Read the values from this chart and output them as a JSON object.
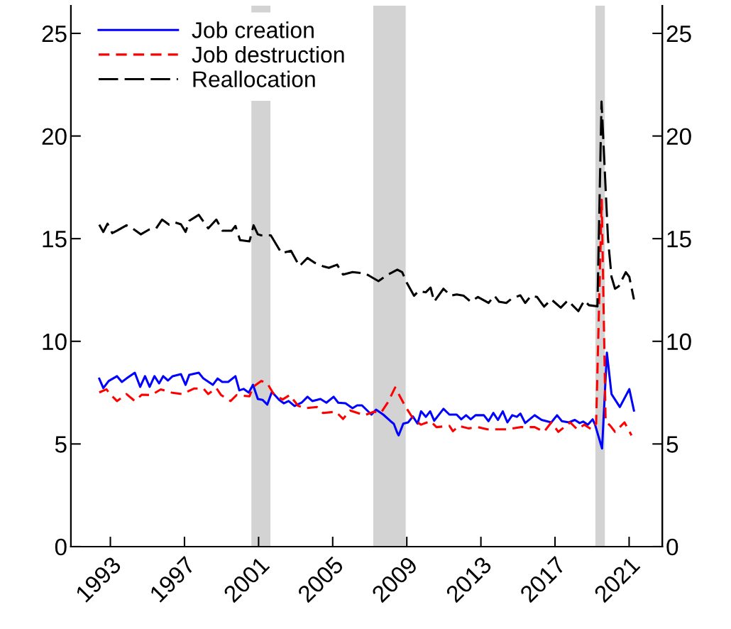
{
  "chart_data": {
    "type": "line",
    "series": [
      {
        "name": "Job creation",
        "color": "#0000ff",
        "line_style": "solid",
        "x": [
          1992.4,
          1992.62,
          1992.91,
          1993.36,
          1993.62,
          1993.87,
          1994.32,
          1994.61,
          1994.87,
          1995.12,
          1995.38,
          1995.63,
          1995.85,
          1996.11,
          1996.36,
          1996.81,
          1997.06,
          1997.26,
          1997.77,
          1998.02,
          1998.53,
          1998.79,
          1999.04,
          1999.36,
          1999.75,
          1999.96,
          2000.19,
          2000.47,
          2000.7,
          2000.96,
          2001.21,
          2001.47,
          2001.72,
          2002.11,
          2002.36,
          2002.62,
          2002.94,
          2003.32,
          2003.64,
          2003.9,
          2004.34,
          2004.66,
          2005.05,
          2005.3,
          2005.69,
          2006.07,
          2006.32,
          2006.58,
          2007.09,
          2007.34,
          2007.73,
          2008.11,
          2008.3,
          2008.49,
          2008.56,
          2008.81,
          2009.07,
          2009.33,
          2009.58,
          2009.77,
          2010.03,
          2010.26,
          2010.48,
          2010.98,
          2011.3,
          2011.69,
          2011.94,
          2012.2,
          2012.45,
          2012.71,
          2013.16,
          2013.41,
          2013.67,
          2013.92,
          2014.18,
          2014.43,
          2014.69,
          2014.94,
          2015.13,
          2015.39,
          2015.9,
          2016.28,
          2016.54,
          2016.8,
          2017.11,
          2017.37,
          2017.75,
          2018.07,
          2018.33,
          2018.52,
          2018.77,
          2019.03,
          2019.16,
          2019.54,
          2019.8,
          2020.05,
          2020.5,
          2021.01,
          2021.26
        ],
        "values": [
          8.18,
          7.72,
          8.07,
          8.3,
          8.02,
          8.19,
          8.47,
          7.78,
          8.3,
          7.78,
          8.3,
          7.95,
          8.3,
          8.09,
          8.3,
          8.4,
          7.88,
          8.37,
          8.47,
          8.19,
          7.88,
          8.19,
          8.02,
          8.02,
          8.3,
          7.61,
          7.68,
          7.5,
          7.88,
          7.19,
          7.15,
          6.92,
          7.54,
          7.15,
          6.98,
          7.09,
          6.85,
          7.01,
          7.3,
          7.09,
          7.19,
          7.01,
          7.3,
          7.01,
          6.98,
          6.74,
          6.88,
          6.88,
          6.43,
          6.67,
          6.43,
          6.12,
          5.98,
          5.53,
          5.42,
          5.99,
          6.05,
          6.34,
          5.99,
          6.59,
          6.32,
          6.59,
          6.13,
          6.71,
          6.43,
          6.43,
          6.2,
          6.4,
          6.2,
          6.4,
          6.4,
          6.11,
          6.51,
          6.17,
          6.59,
          6.05,
          6.4,
          6.32,
          6.48,
          6.02,
          6.4,
          6.17,
          6.11,
          6.05,
          6.4,
          6.11,
          6.05,
          6.17,
          6.02,
          6.09,
          5.94,
          6.2,
          5.94,
          4.78,
          9.45,
          7.43,
          6.8,
          7.67,
          6.63
        ]
      },
      {
        "name": "Job destruction",
        "color": "#ff0000",
        "line_style": "dashed",
        "x": [
          1992.4,
          1992.79,
          1992.98,
          1993.36,
          1993.87,
          1994.32,
          1994.7,
          1995.21,
          1995.72,
          1996.36,
          1996.87,
          1997.51,
          1998.02,
          1998.28,
          1998.72,
          1998.98,
          1999.49,
          1999.81,
          2000.51,
          2000.7,
          2001.15,
          2001.47,
          2001.85,
          2002.3,
          2002.68,
          2003.13,
          2003.51,
          2004.15,
          2004.47,
          2005.17,
          2005.56,
          2005.94,
          2006.71,
          2007.22,
          2007.6,
          2007.98,
          2008.37,
          2008.94,
          2009.39,
          2009.77,
          2010.28,
          2010.6,
          2011.3,
          2011.49,
          2011.82,
          2012.33,
          2012.84,
          2013.35,
          2014.37,
          2015.13,
          2015.9,
          2016.41,
          2016.8,
          2017.18,
          2017.82,
          2018.2,
          2018.58,
          2018.97,
          2019.22,
          2019.52,
          2019.73,
          2019.99,
          2020.24,
          2020.75,
          2021.13
        ],
        "values": [
          7.51,
          7.66,
          7.43,
          7.09,
          7.43,
          7.09,
          7.4,
          7.38,
          7.66,
          7.49,
          7.43,
          7.7,
          7.7,
          7.43,
          7.72,
          7.38,
          7.09,
          7.38,
          7.32,
          7.78,
          8.07,
          7.95,
          7.38,
          7.17,
          7.38,
          6.86,
          6.74,
          6.8,
          6.51,
          6.57,
          6.22,
          6.63,
          6.4,
          6.57,
          6.51,
          7.03,
          7.75,
          6.8,
          6.17,
          5.94,
          6.11,
          5.82,
          5.88,
          5.62,
          5.88,
          5.76,
          5.82,
          5.71,
          5.71,
          5.82,
          5.82,
          5.59,
          6.05,
          5.59,
          6.05,
          5.71,
          5.94,
          5.71,
          5.99,
          16.9,
          6.11,
          5.88,
          5.59,
          6.05,
          5.42
        ]
      },
      {
        "name": "Reallocation",
        "color": "#000000",
        "line_style": "dashed",
        "x": [
          1992.4,
          1992.62,
          1992.85,
          1993.1,
          1993.36,
          1993.87,
          1994.19,
          1994.64,
          1995.08,
          1995.47,
          1995.79,
          1996.17,
          1996.49,
          1996.81,
          1997.06,
          1997.26,
          1997.77,
          1998.28,
          1998.72,
          1999.04,
          1999.55,
          1999.75,
          2000.0,
          2000.51,
          2000.73,
          2000.96,
          2001.15,
          2001.66,
          2002.24,
          2002.75,
          2003.2,
          2003.64,
          2004.02,
          2004.47,
          2004.79,
          2005.24,
          2005.56,
          2006.07,
          2006.71,
          2006.96,
          2007.47,
          2007.98,
          2008.49,
          2008.75,
          2009.0,
          2009.39,
          2009.64,
          2010.03,
          2010.28,
          2010.48,
          2010.98,
          2011.37,
          2011.69,
          2012.07,
          2012.45,
          2012.84,
          2013.41,
          2013.73,
          2013.98,
          2014.37,
          2014.69,
          2015.13,
          2015.39,
          2015.71,
          2016.03,
          2016.41,
          2016.8,
          2017.31,
          2017.69,
          2018.26,
          2018.58,
          2018.83,
          2019.29,
          2019.51,
          2019.86,
          2020.05,
          2020.24,
          2020.44,
          2020.82,
          2021.01,
          2021.26
        ],
        "values": [
          15.68,
          15.33,
          15.73,
          15.27,
          15.39,
          15.65,
          15.5,
          15.21,
          15.44,
          15.5,
          15.93,
          15.68,
          15.79,
          15.7,
          15.33,
          15.87,
          16.16,
          15.5,
          15.93,
          15.39,
          15.39,
          15.62,
          14.93,
          14.87,
          15.65,
          15.21,
          15.16,
          15.16,
          14.29,
          14.41,
          13.66,
          14.06,
          13.83,
          13.66,
          13.58,
          13.73,
          13.25,
          13.37,
          13.31,
          13.2,
          12.93,
          13.25,
          13.49,
          13.37,
          12.85,
          12.22,
          12.45,
          12.39,
          12.62,
          11.93,
          12.56,
          12.22,
          12.28,
          12.22,
          11.93,
          12.16,
          11.87,
          12.22,
          11.93,
          11.87,
          12.1,
          12.24,
          11.87,
          12.22,
          12.16,
          11.69,
          12.04,
          11.64,
          11.99,
          11.47,
          11.99,
          11.76,
          11.7,
          21.68,
          14.98,
          13.14,
          12.56,
          12.68,
          13.37,
          13.14,
          12.04
        ]
      }
    ],
    "bands": [
      {
        "axis": "x",
        "from": 2000.61,
        "to": 2001.64,
        "color": "#d3d3d3"
      },
      {
        "axis": "x",
        "from": 2007.19,
        "to": 2008.94,
        "color": "#d3d3d3"
      },
      {
        "axis": "x",
        "from": 2019.18,
        "to": 2019.69,
        "color": "#d3d3d3"
      }
    ],
    "xlim": [
      1990.87,
      2022.79
    ],
    "xticks": [
      1993,
      1997,
      2001,
      2005,
      2009,
      2013,
      2017,
      2021
    ],
    "ylim": [
      0,
      26.35
    ],
    "yticks": [
      0,
      5,
      10,
      15,
      20,
      25
    ],
    "y2lim": [
      0,
      26.35
    ],
    "y2ticks": [
      0,
      5,
      10,
      15,
      20,
      25
    ],
    "legend": "top left",
    "grid": false,
    "marker": "none"
  }
}
